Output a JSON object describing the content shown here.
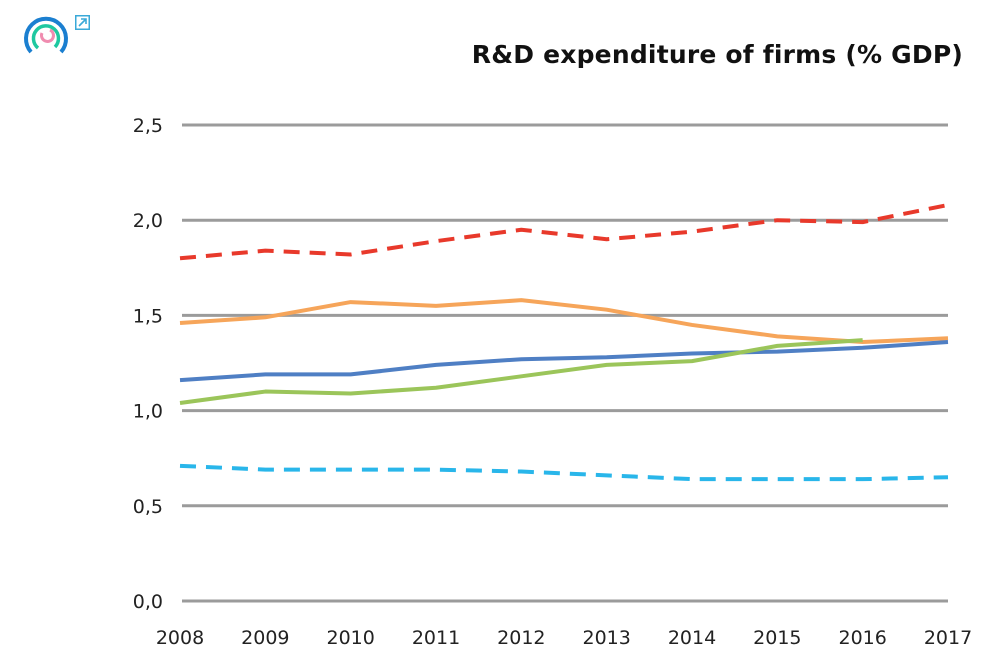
{
  "logo": {
    "icon": "concentric-arcs-logo",
    "colors": [
      "#1b7fd0",
      "#1ec8a0",
      "#f08cb0"
    ]
  },
  "external_link": {
    "icon": "external-link-icon",
    "color": "#3aa9d8"
  },
  "chart_data": {
    "type": "line",
    "title": "R&D expenditure of firms (% GDP)",
    "xlabel": "",
    "ylabel": "",
    "categories": [
      "2008",
      "2009",
      "2010",
      "2011",
      "2012",
      "2013",
      "2014",
      "2015",
      "2016",
      "2017"
    ],
    "ylim": [
      0,
      2.5
    ],
    "yticks": [
      "0,0",
      "0,5",
      "1,0",
      "1,5",
      "2,0",
      "2,5"
    ],
    "grid": true,
    "series": [
      {
        "color": "#e8392b",
        "style": "dashed",
        "values": [
          1.8,
          1.84,
          1.82,
          1.89,
          1.95,
          1.9,
          1.94,
          2.0,
          1.99,
          2.08
        ]
      },
      {
        "color": "#f6a55a",
        "style": "solid",
        "values": [
          1.46,
          1.49,
          1.57,
          1.55,
          1.58,
          1.53,
          1.45,
          1.39,
          1.36,
          1.38
        ]
      },
      {
        "color": "#4f7fc4",
        "style": "solid",
        "values": [
          1.16,
          1.19,
          1.19,
          1.24,
          1.27,
          1.28,
          1.3,
          1.31,
          1.33,
          1.36
        ]
      },
      {
        "color": "#9bc55a",
        "style": "solid",
        "values": [
          1.04,
          1.1,
          1.09,
          1.12,
          1.18,
          1.24,
          1.26,
          1.34,
          1.37,
          null
        ]
      },
      {
        "color": "#29b6ea",
        "style": "dashed",
        "values": [
          0.71,
          0.69,
          0.69,
          0.69,
          0.68,
          0.66,
          0.64,
          0.64,
          0.64,
          0.65
        ]
      }
    ]
  }
}
